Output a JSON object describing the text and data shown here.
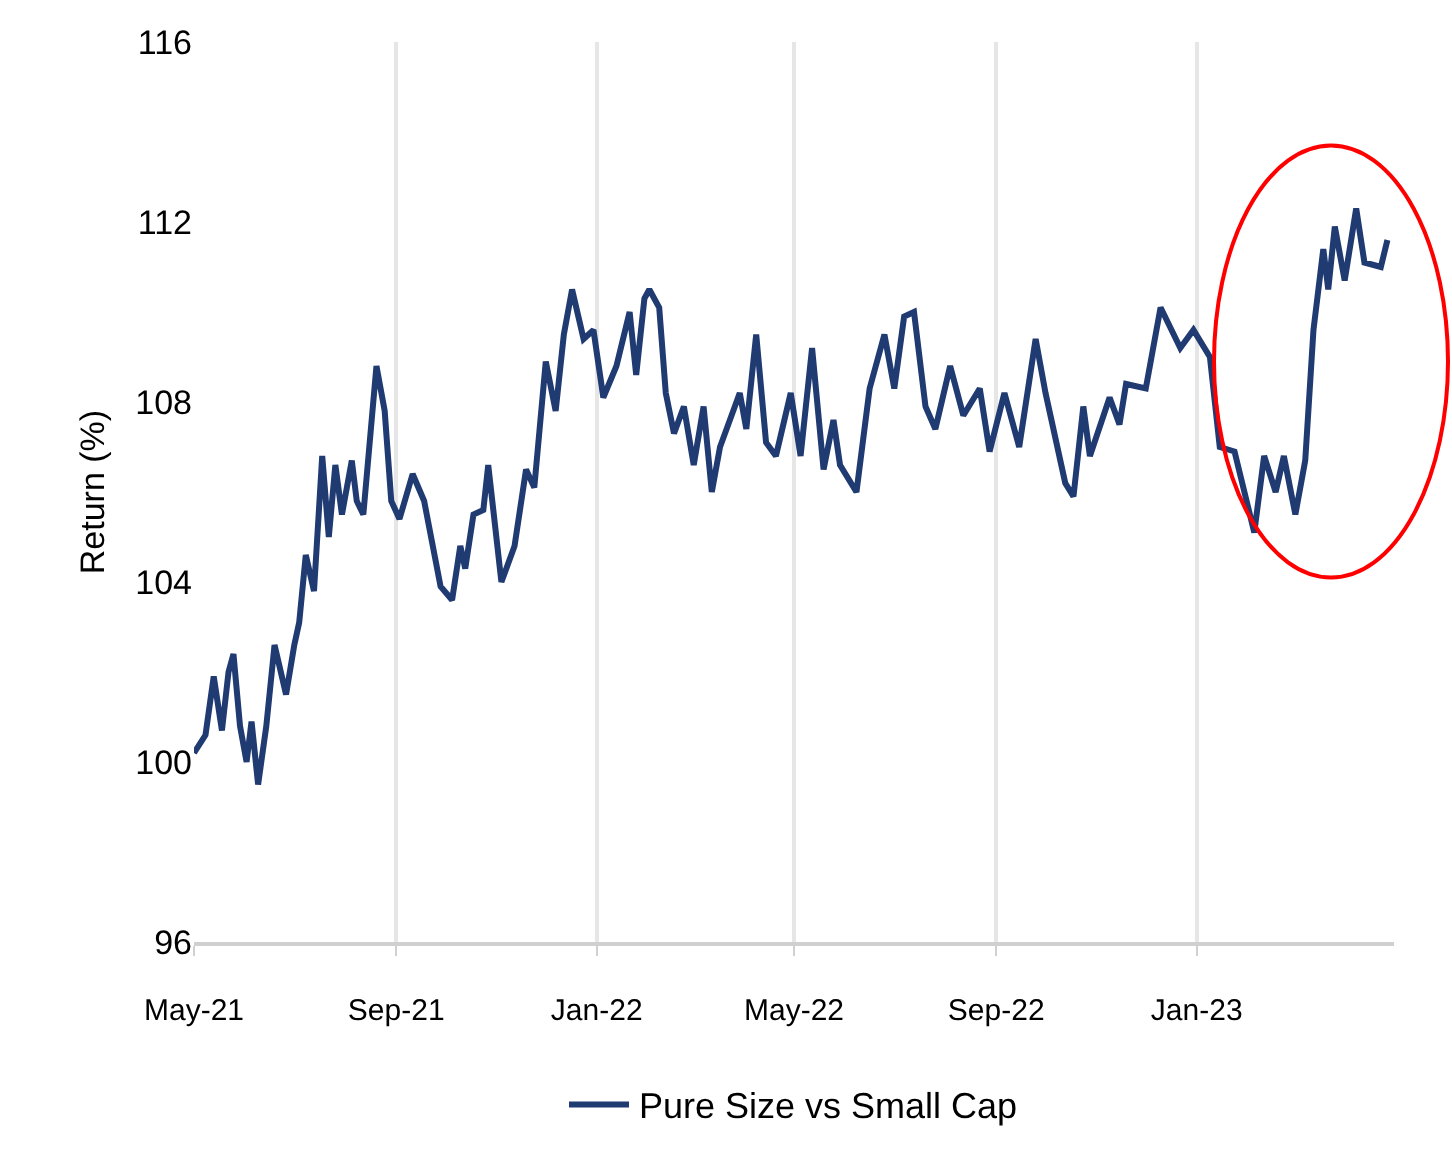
{
  "chart_data": {
    "type": "line",
    "ylabel": "Return (%)",
    "xlim": [
      "2021-05-01",
      "2023-05-01"
    ],
    "xticks": [
      {
        "value": "2021-05-01",
        "label": "May-21"
      },
      {
        "value": "2021-09-01",
        "label": "Sep-21"
      },
      {
        "value": "2022-01-01",
        "label": "Jan-22"
      },
      {
        "value": "2022-05-01",
        "label": "May-22"
      },
      {
        "value": "2022-09-01",
        "label": "Sep-22"
      },
      {
        "value": "2023-01-01",
        "label": "Jan-23"
      }
    ],
    "ylim": [
      96,
      116
    ],
    "yticks": [
      96,
      100,
      104,
      108,
      112,
      116
    ],
    "grid": "x",
    "legend": "bottom",
    "marker": "none",
    "line_style": "solid",
    "x": [
      "2021-05-01",
      "2021-05-08",
      "2021-05-13",
      "2021-05-18",
      "2021-05-22",
      "2021-05-25",
      "2021-05-29",
      "2021-06-02",
      "2021-06-05",
      "2021-06-09",
      "2021-06-14",
      "2021-06-19",
      "2021-06-26",
      "2021-07-01",
      "2021-07-04",
      "2021-07-08",
      "2021-07-13",
      "2021-07-18",
      "2021-07-22",
      "2021-07-26",
      "2021-07-30",
      "2021-08-05",
      "2021-08-08",
      "2021-08-12",
      "2021-08-20",
      "2021-08-25",
      "2021-08-29",
      "2021-09-03",
      "2021-09-11",
      "2021-09-18",
      "2021-09-28",
      "2021-10-05",
      "2021-10-10",
      "2021-10-13",
      "2021-10-18",
      "2021-10-24",
      "2021-10-27",
      "2021-11-04",
      "2021-11-12",
      "2021-11-19",
      "2021-11-24",
      "2021-12-01",
      "2021-12-07",
      "2021-12-12",
      "2021-12-17",
      "2021-12-24",
      "2021-12-30",
      "2022-01-05",
      "2022-01-13",
      "2022-01-21",
      "2022-01-25",
      "2022-01-30",
      "2022-02-02",
      "2022-02-08",
      "2022-02-12",
      "2022-02-17",
      "2022-02-23",
      "2022-03-01",
      "2022-03-07",
      "2022-03-12",
      "2022-03-17",
      "2022-03-29",
      "2022-04-02",
      "2022-04-08",
      "2022-04-14",
      "2022-04-20",
      "2022-04-29",
      "2022-05-05",
      "2022-05-12",
      "2022-05-19",
      "2022-05-25",
      "2022-05-29",
      "2022-06-08",
      "2022-06-16",
      "2022-06-25",
      "2022-07-01",
      "2022-07-07",
      "2022-07-13",
      "2022-07-20",
      "2022-07-26",
      "2022-08-04",
      "2022-08-12",
      "2022-08-22",
      "2022-08-28",
      "2022-09-06",
      "2022-09-15",
      "2022-09-25",
      "2022-10-01",
      "2022-10-13",
      "2022-10-18",
      "2022-10-24",
      "2022-10-28",
      "2022-11-09",
      "2022-11-15",
      "2022-11-19",
      "2022-12-01",
      "2022-12-10",
      "2022-12-22",
      "2022-12-30",
      "2023-01-09",
      "2023-01-15",
      "2023-01-24",
      "2023-02-05",
      "2023-02-11",
      "2023-02-18",
      "2023-02-23",
      "2023-03-02",
      "2023-03-08",
      "2023-03-13",
      "2023-03-19",
      "2023-03-22",
      "2023-03-26",
      "2023-04-01",
      "2023-04-08",
      "2023-04-13",
      "2023-04-23",
      "2023-04-27"
    ],
    "series": [
      {
        "name": "Pure Size vs Small Cap",
        "color": "#203a72",
        "values": [
          100.2,
          100.6,
          101.9,
          100.7,
          102.0,
          102.4,
          100.8,
          100.0,
          100.9,
          99.5,
          100.8,
          102.6,
          101.5,
          102.6,
          103.1,
          104.6,
          103.8,
          106.8,
          105.0,
          106.6,
          105.5,
          106.7,
          105.8,
          105.5,
          108.8,
          107.8,
          105.8,
          105.4,
          106.4,
          105.8,
          103.9,
          103.6,
          104.8,
          104.3,
          105.5,
          105.6,
          106.6,
          104.0,
          104.8,
          106.5,
          106.1,
          108.9,
          107.8,
          109.5,
          110.5,
          109.4,
          109.6,
          108.1,
          108.8,
          110.0,
          108.6,
          110.3,
          110.5,
          110.1,
          108.2,
          107.3,
          107.9,
          106.6,
          107.9,
          106.0,
          107.0,
          108.2,
          107.4,
          109.5,
          107.1,
          106.8,
          108.2,
          106.8,
          109.2,
          106.5,
          107.6,
          106.6,
          106.0,
          108.3,
          109.5,
          108.3,
          109.9,
          110.0,
          107.9,
          107.4,
          108.8,
          107.7,
          108.3,
          106.9,
          108.2,
          107.0,
          109.4,
          108.2,
          106.2,
          105.9,
          107.9,
          106.8,
          108.1,
          107.5,
          108.4,
          108.3,
          110.1,
          109.2,
          109.6,
          109.0,
          107.0,
          106.9,
          105.1,
          106.8,
          106.0,
          106.8,
          105.5,
          106.7,
          109.6,
          111.4,
          110.5,
          111.9,
          110.7,
          112.3,
          111.1,
          111.0,
          111.6
        ]
      }
    ]
  }
}
